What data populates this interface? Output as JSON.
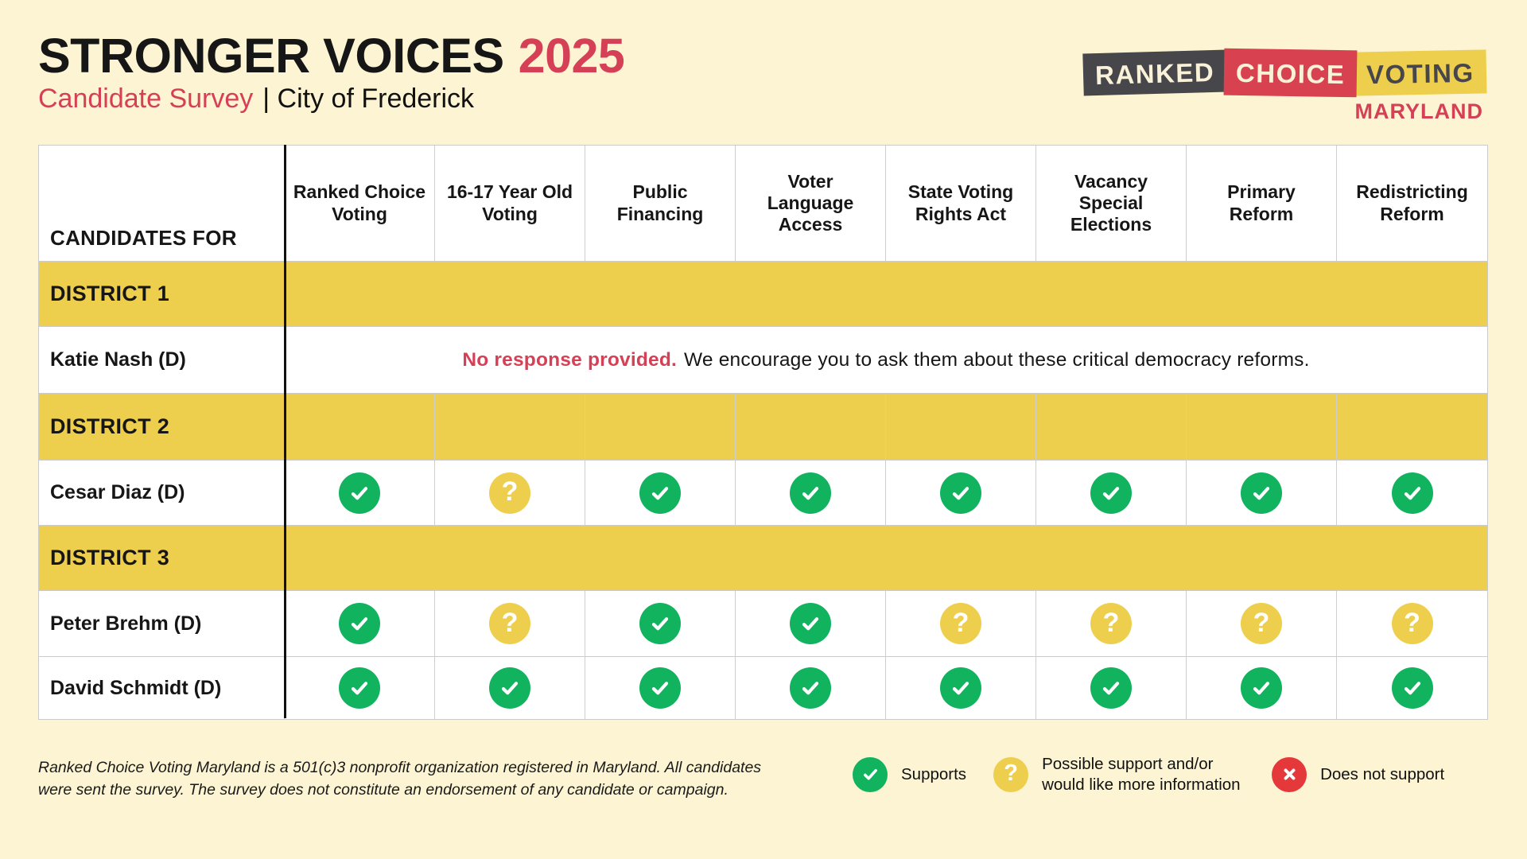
{
  "colors": {
    "background": "#FCF4D2",
    "yellow": "#EECE4D",
    "green": "#12B35F",
    "red": "#D8414F",
    "red_text": "#D54056",
    "x_red": "#E5383B",
    "dark": "#47464B",
    "ink": "#161616",
    "table_border": "#CBCBCB"
  },
  "header": {
    "title": "STRONGER VOICES",
    "year": "2025",
    "subtitle_primary": "Candidate Survey",
    "subtitle_secondary": "| City of Frederick"
  },
  "logo": {
    "word1": "RANKED",
    "word2": "CHOICE",
    "word3": "VOTING",
    "region": "MARYLAND"
  },
  "table": {
    "corner_label": "CANDIDATES FOR",
    "columns": [
      "Ranked Choice Voting",
      "16-17 Year Old Voting",
      "Public Financing",
      "Voter Language Access",
      "State Voting Rights Act",
      "Vacancy Special Elections",
      "Primary Reform",
      "Redistricting Reform"
    ],
    "no_response": {
      "bold": "No response provided.",
      "rest": "We encourage you to ask them about these critical democracy reforms."
    },
    "sections": [
      {
        "district": "DISTRICT 1",
        "separators": false,
        "rows": [
          {
            "name": "Katie Nash (D)",
            "type": "no_response"
          }
        ]
      },
      {
        "district": "DISTRICT 2",
        "separators": true,
        "rows": [
          {
            "name": "Cesar Diaz (D)",
            "type": "responses",
            "responses": [
              "check",
              "question",
              "check",
              "check",
              "check",
              "check",
              "check",
              "check"
            ]
          }
        ]
      },
      {
        "district": "DISTRICT 3",
        "separators": false,
        "rows": [
          {
            "name": "Peter Brehm (D)",
            "type": "responses",
            "responses": [
              "check",
              "question",
              "check",
              "check",
              "question",
              "question",
              "question",
              "question"
            ]
          },
          {
            "name": "David Schmidt (D)",
            "type": "responses",
            "responses": [
              "check",
              "check",
              "check",
              "check",
              "check",
              "check",
              "check",
              "check"
            ]
          }
        ]
      }
    ]
  },
  "footer": {
    "disclaimer_lines": [
      "Ranked Choice Voting Maryland is a 501(c)3 nonprofit organization registered in Maryland. All candidates",
      "were sent the survey. The survey does not constitute an endorsement of any candidate or campaign."
    ],
    "legend": [
      {
        "icon": "check",
        "label": "Supports"
      },
      {
        "icon": "question",
        "label": "Possible support and/or would like more information"
      },
      {
        "icon": "x",
        "label": "Does not support"
      }
    ]
  }
}
